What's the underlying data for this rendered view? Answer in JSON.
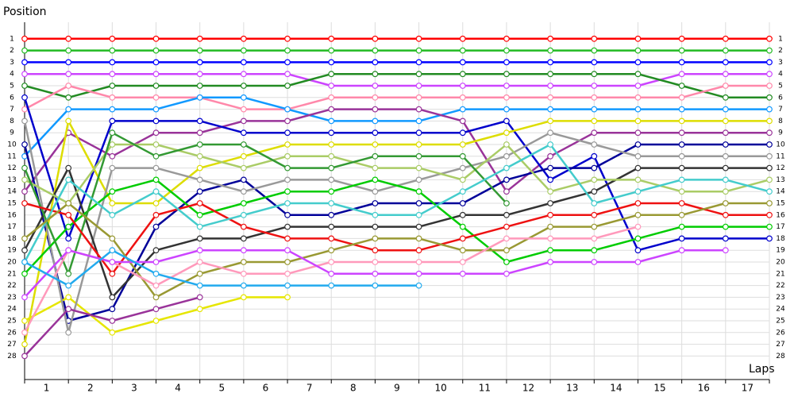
{
  "chart_data": {
    "type": "line",
    "y_label": "Position",
    "x_label": "Laps",
    "x": [
      0,
      1,
      2,
      3,
      4,
      5,
      6,
      7,
      8,
      9,
      10,
      11,
      12,
      13,
      14,
      15,
      16,
      17
    ],
    "xlim": [
      0,
      17
    ],
    "xticks": [
      {
        "value": 0.5,
        "label": "1"
      },
      {
        "value": 1.5,
        "label": "2"
      },
      {
        "value": 2.5,
        "label": "3"
      },
      {
        "value": 3.5,
        "label": "4"
      },
      {
        "value": 4.5,
        "label": "5"
      },
      {
        "value": 5.5,
        "label": "6"
      },
      {
        "value": 6.5,
        "label": "7"
      },
      {
        "value": 7.5,
        "label": "8"
      },
      {
        "value": 8.5,
        "label": "9"
      },
      {
        "value": 9.5,
        "label": "10"
      },
      {
        "value": 10.5,
        "label": "11"
      },
      {
        "value": 11.5,
        "label": "12"
      },
      {
        "value": 12.5,
        "label": "13"
      },
      {
        "value": 13.5,
        "label": "14"
      },
      {
        "value": 14.5,
        "label": "15"
      },
      {
        "value": 15.5,
        "label": "16"
      },
      {
        "value": 16.5,
        "label": "17"
      }
    ],
    "ylim": [
      30,
      0
    ],
    "yticks": [
      1,
      2,
      3,
      4,
      5,
      6,
      7,
      8,
      9,
      10,
      11,
      12,
      13,
      14,
      15,
      16,
      17,
      18,
      19,
      20,
      21,
      22,
      23,
      24,
      25,
      26,
      27,
      28
    ],
    "grid": true,
    "series": [
      {
        "color": "#ff0000",
        "values": [
          1,
          1,
          1,
          1,
          1,
          1,
          1,
          1,
          1,
          1,
          1,
          1,
          1,
          1,
          1,
          1,
          1,
          1
        ]
      },
      {
        "color": "#22bb22",
        "values": [
          2,
          2,
          2,
          2,
          2,
          2,
          2,
          2,
          2,
          2,
          2,
          2,
          2,
          2,
          2,
          2,
          2,
          2
        ]
      },
      {
        "color": "#0000ff",
        "values": [
          3,
          3,
          3,
          3,
          3,
          3,
          3,
          3,
          3,
          3,
          3,
          3,
          3,
          3,
          3,
          3,
          3,
          3
        ]
      },
      {
        "color": "#cc44ff",
        "values": [
          4,
          4,
          4,
          4,
          4,
          4,
          4,
          5,
          5,
          5,
          5,
          5,
          5,
          5,
          5,
          4,
          4,
          4
        ]
      },
      {
        "color": "#228b22",
        "values": [
          5,
          6,
          5,
          5,
          5,
          5,
          5,
          4,
          4,
          4,
          4,
          4,
          4,
          4,
          4,
          5,
          6,
          6
        ]
      },
      {
        "color": "#ff88aa",
        "values": [
          7,
          5,
          6,
          6,
          6,
          7,
          7,
          6,
          6,
          6,
          6,
          6,
          6,
          6,
          6,
          6,
          5,
          5
        ]
      },
      {
        "color": "#1199ff",
        "values": [
          11,
          7,
          7,
          7,
          6,
          6,
          7,
          8,
          8,
          8,
          7,
          7,
          7,
          7,
          7,
          7,
          7,
          7
        ]
      },
      {
        "color": "#993399",
        "values": [
          14,
          9,
          11,
          9,
          9,
          8,
          8,
          7,
          7,
          7,
          8,
          14,
          11,
          9,
          9,
          9,
          9,
          9
        ]
      },
      {
        "color": "#0000cc",
        "values": [
          6,
          18,
          8,
          8,
          8,
          9,
          9,
          9,
          9,
          9,
          9,
          8,
          13,
          11,
          19,
          18,
          18,
          18
        ]
      },
      {
        "color": "#000099",
        "values": [
          10,
          25,
          24,
          17,
          14,
          13,
          16,
          16,
          15,
          15,
          15,
          13,
          12,
          12,
          10,
          10,
          10,
          10
        ]
      },
      {
        "color": "#dddd00",
        "values": [
          27,
          8,
          15,
          15,
          12,
          11,
          10,
          10,
          10,
          10,
          10,
          9,
          8,
          8,
          8,
          8,
          8,
          8
        ]
      },
      {
        "color": "#e6e600",
        "values": [
          25,
          23,
          26,
          25,
          24,
          23,
          23,
          null,
          null,
          null,
          null,
          null,
          null,
          null,
          null,
          null,
          null,
          null
        ]
      },
      {
        "color": "#999999",
        "values": [
          8,
          26,
          12,
          12,
          13,
          14,
          13,
          13,
          14,
          13,
          12,
          11,
          9,
          10,
          11,
          11,
          11,
          11
        ]
      },
      {
        "color": "#333333",
        "values": [
          19,
          12,
          23,
          19,
          18,
          18,
          17,
          17,
          17,
          17,
          16,
          16,
          15,
          14,
          12,
          12,
          12,
          12
        ]
      },
      {
        "color": "#aacc66",
        "values": [
          13,
          15,
          10,
          10,
          11,
          12,
          11,
          11,
          12,
          12,
          13,
          10,
          14,
          13,
          13,
          14,
          14,
          13
        ]
      },
      {
        "color": "#00cc00",
        "values": [
          21,
          17,
          14,
          13,
          16,
          15,
          14,
          14,
          13,
          14,
          17,
          20,
          19,
          19,
          18,
          17,
          17,
          17
        ]
      },
      {
        "color": "#339933",
        "values": [
          12,
          21,
          9,
          11,
          10,
          10,
          12,
          12,
          11,
          11,
          11,
          15,
          null,
          null,
          null,
          null,
          null,
          null
        ]
      },
      {
        "color": "#ee1111",
        "values": [
          15,
          16,
          21,
          16,
          15,
          17,
          18,
          18,
          19,
          19,
          18,
          17,
          16,
          16,
          15,
          15,
          16,
          16
        ]
      },
      {
        "color": "#44cccc",
        "values": [
          20,
          13,
          16,
          14,
          17,
          16,
          15,
          15,
          16,
          16,
          14,
          12,
          10,
          15,
          14,
          13,
          13,
          14
        ]
      },
      {
        "color": "#999933",
        "values": [
          18,
          15,
          18,
          23,
          21,
          20,
          20,
          19,
          18,
          18,
          19,
          19,
          17,
          17,
          16,
          16,
          15,
          15
        ]
      },
      {
        "color": "#ff99bb",
        "values": [
          26,
          19,
          20,
          22,
          20,
          21,
          21,
          20,
          20,
          20,
          20,
          18,
          18,
          18,
          17,
          null,
          null,
          null
        ]
      },
      {
        "color": "#cc44ff",
        "values": [
          23,
          19,
          20,
          20,
          19,
          19,
          19,
          21,
          21,
          21,
          21,
          21,
          20,
          20,
          20,
          19,
          19,
          null
        ]
      },
      {
        "color": "#22aaee",
        "values": [
          20,
          22,
          19,
          21,
          22,
          22,
          22,
          22,
          22,
          22,
          null,
          null,
          null,
          null,
          null,
          null,
          null,
          null
        ]
      },
      {
        "color": "#993399",
        "values": [
          28,
          24,
          25,
          24,
          23,
          null,
          null,
          null,
          null,
          null,
          null,
          null,
          null,
          null,
          null,
          null,
          null,
          null
        ]
      }
    ]
  }
}
